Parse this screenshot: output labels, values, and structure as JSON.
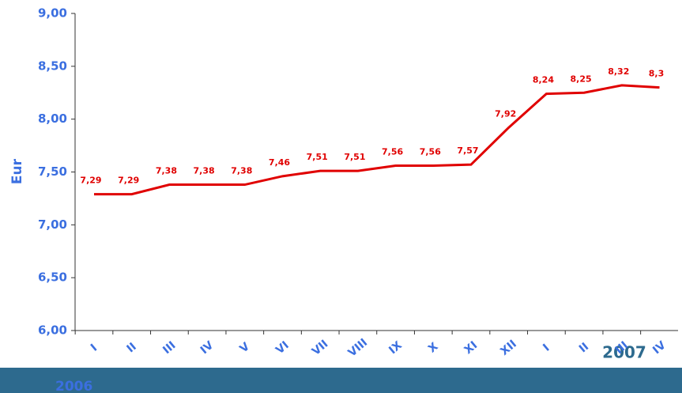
{
  "chart_data": {
    "type": "line",
    "y_label": "Eur",
    "categories": [
      "I",
      "II",
      "III",
      "IV",
      "V",
      "VI",
      "VII",
      "VIII",
      "IX",
      "X",
      "XI",
      "XII",
      "I",
      "II",
      "III",
      "IV"
    ],
    "groups": [
      "2006",
      "2007"
    ],
    "series": [
      {
        "name": "Eur",
        "color": "#e00000",
        "values": [
          7.29,
          7.29,
          7.38,
          7.38,
          7.38,
          7.46,
          7.51,
          7.51,
          7.56,
          7.56,
          7.57,
          7.92,
          8.24,
          8.25,
          8.32,
          8.3
        ],
        "value_labels": [
          "7,29",
          "7,29",
          "7,38",
          "7,38",
          "7,38",
          "7,46",
          "7,51",
          "7,51",
          "7,56",
          "7,56",
          "7,57",
          "7,92",
          "8,24",
          "8,25",
          "8,32",
          "8,3"
        ]
      }
    ],
    "ylim": [
      6,
      9
    ],
    "yticks": [
      {
        "value": 6,
        "label": "6,00"
      },
      {
        "value": 6.5,
        "label": "6,50"
      },
      {
        "value": 7,
        "label": "7,00"
      },
      {
        "value": 7.5,
        "label": "7,50"
      },
      {
        "value": 8,
        "label": "8,00"
      },
      {
        "value": 8.5,
        "label": "8,50"
      },
      {
        "value": 9,
        "label": "9,00"
      }
    ]
  }
}
